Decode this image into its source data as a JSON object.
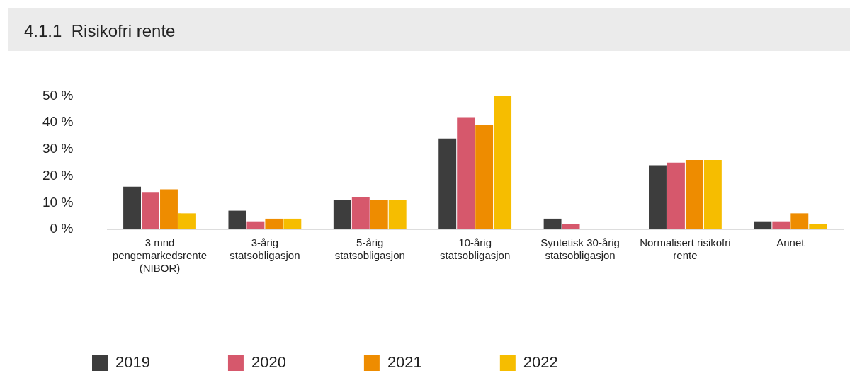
{
  "chart_data": {
    "type": "bar",
    "title": "4.1.1  Risikofri rente",
    "categories": [
      "3 mnd pengemarkedsrente (NIBOR)",
      "3-årig statsobligasjon",
      "5-årig statsobligasjon",
      "10-årig statsobligasjon",
      "Syntetisk 30-årig statsobligasjon",
      "Normalisert risikofri rente",
      "Annet"
    ],
    "series": [
      {
        "name": "2019",
        "color": "#3d3d3d",
        "values": [
          16,
          7,
          11,
          34,
          4,
          24,
          3
        ]
      },
      {
        "name": "2020",
        "color": "#d6586c",
        "values": [
          14,
          3,
          12,
          42,
          2,
          25,
          3
        ]
      },
      {
        "name": "2021",
        "color": "#ee8c00",
        "values": [
          15,
          4,
          11,
          39,
          0,
          26,
          6
        ]
      },
      {
        "name": "2022",
        "color": "#f6bd00",
        "values": [
          6,
          4,
          11,
          50,
          0,
          26,
          2
        ]
      }
    ],
    "ylim": [
      0,
      50
    ],
    "yticks": [
      {
        "value": 0,
        "label": "0 %"
      },
      {
        "value": 10,
        "label": "10 %"
      },
      {
        "value": 20,
        "label": "20 %"
      },
      {
        "value": 30,
        "label": "30 %"
      },
      {
        "value": 40,
        "label": "40 %"
      },
      {
        "value": 50,
        "label": "50 %"
      }
    ],
    "grid": false,
    "legend": "bottom left"
  }
}
